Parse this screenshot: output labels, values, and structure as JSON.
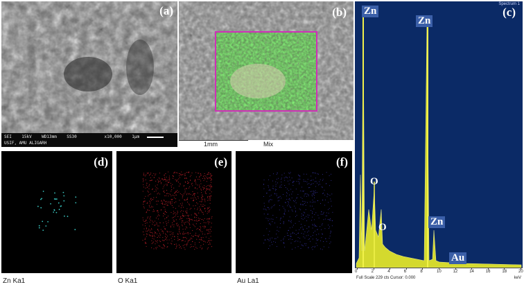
{
  "panels": {
    "a": {
      "label": "(a)",
      "sem_info": {
        "line1": "SEI    15kV    WD13mm    SS30           x10,000    1μm",
        "line2": "USIF, AMU ALIGARH"
      }
    },
    "b": {
      "label": "(b)",
      "scale_text": "1mm",
      "mix_text": "Mix"
    },
    "c": {
      "label": "(c)",
      "spectrum_title": "Spectrum 1",
      "footer": "Full Scale 229 cts Cursor: 0.000",
      "unit": "keV",
      "peak_labels": [
        "Zn",
        "Zn",
        "O",
        "O",
        "Zn",
        "Au"
      ],
      "x_ticks": [
        "0",
        "2",
        "4",
        "6",
        "8",
        "10",
        "12",
        "14",
        "16",
        "18",
        "20"
      ]
    },
    "d": {
      "label": "(d)",
      "caption": "Zn Ka1"
    },
    "e": {
      "label": "(e)",
      "caption": "O Ka1"
    },
    "f": {
      "label": "(f)",
      "caption": "Au La1"
    }
  },
  "colors": {
    "spectrum_bg": "#0b2a66",
    "spectrum_fill": "#e6e82a",
    "zn_map": "#39c6c0",
    "o_map": "#c0202a",
    "au_map": "#3a36b0",
    "roi_box": "#d02fb8"
  }
}
